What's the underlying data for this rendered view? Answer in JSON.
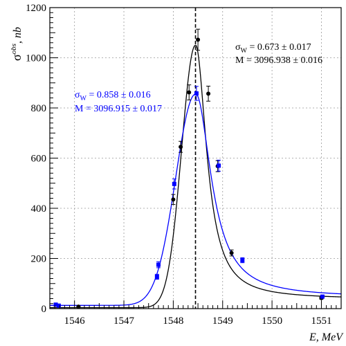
{
  "chart_data": {
    "type": "scatter",
    "xlabel": "E, MeV",
    "ylabel_symbol": "σ",
    "ylabel_superscript": "obs",
    "ylabel_unit": ", nb",
    "xlim": [
      1545.5,
      1551.4
    ],
    "ylim": [
      0,
      1200
    ],
    "grid": true,
    "x_ticks": [
      1546,
      1547,
      1548,
      1549,
      1550,
      1551
    ],
    "y_ticks": [
      0,
      200,
      400,
      600,
      800,
      1000,
      1200
    ],
    "reference_line_x": 1548.45,
    "series": [
      {
        "color": "#000000",
        "points": [
          {
            "x": 1546.08,
            "y": 8,
            "err": 3
          },
          {
            "x": 1548.0,
            "y": 435,
            "err": 20
          },
          {
            "x": 1548.15,
            "y": 645,
            "err": 22
          },
          {
            "x": 1548.32,
            "y": 862,
            "err": 30
          },
          {
            "x": 1548.5,
            "y": 1072,
            "err": 42
          },
          {
            "x": 1548.71,
            "y": 857,
            "err": 30
          },
          {
            "x": 1548.9,
            "y": 568,
            "err": 22
          },
          {
            "x": 1549.18,
            "y": 222,
            "err": 12
          },
          {
            "x": 1551.0,
            "y": 42,
            "err": 4
          }
        ],
        "curve": {
          "peak_x": 1548.45,
          "peak_y": 1050,
          "width_left": 0.28,
          "width_right": 0.27,
          "tail_right": 38,
          "baseline_left": 4
        },
        "annotation": {
          "sigma_symbol": "σ",
          "sigma_sub": "W",
          "sigma_value": " = 0.673 ± 0.017",
          "mass_label": "M",
          "mass_value": "  = 3096.938 ± 0.016"
        }
      },
      {
        "color": "#0000ff",
        "points": [
          {
            "x": 1545.62,
            "y": 16,
            "err": 4
          },
          {
            "x": 1545.68,
            "y": 12,
            "err": 3
          },
          {
            "x": 1547.67,
            "y": 127,
            "err": 10
          },
          {
            "x": 1547.7,
            "y": 175,
            "err": 12
          },
          {
            "x": 1548.02,
            "y": 497,
            "err": 20
          },
          {
            "x": 1548.47,
            "y": 858,
            "err": 28
          },
          {
            "x": 1548.92,
            "y": 570,
            "err": 22
          },
          {
            "x": 1549.4,
            "y": 193,
            "err": 10
          },
          {
            "x": 1551.02,
            "y": 48,
            "err": 4
          }
        ],
        "curve": {
          "peak_x": 1548.45,
          "peak_y": 855,
          "width_left": 0.4,
          "width_right": 0.38,
          "tail_right": 45,
          "baseline_left": 13
        },
        "annotation": {
          "sigma_symbol": "σ",
          "sigma_sub": "W",
          "sigma_value": " = 0.858 ± 0.016",
          "mass_label": "M",
          "mass_value": "  = 3096.915 ± 0.017"
        }
      }
    ]
  }
}
